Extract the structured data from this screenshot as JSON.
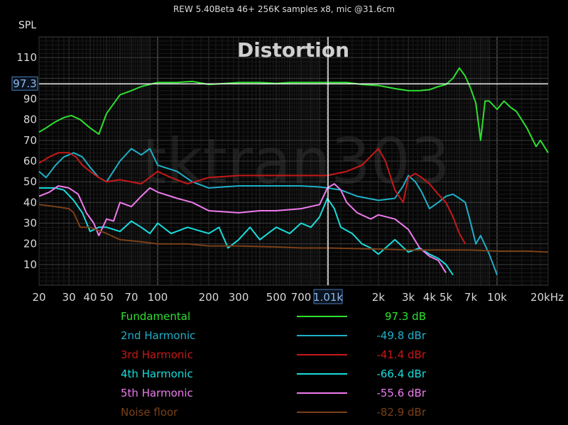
{
  "header": {
    "text": "REW 5.40Beta 46+ 256K samples x8, mic @31.6cm"
  },
  "chart_data": {
    "type": "line",
    "title": "Distortion",
    "ylabel": "SPL",
    "watermark": "tktran303",
    "xscale": "log",
    "xlim": [
      20,
      20000
    ],
    "ylim": [
      0,
      120
    ],
    "grid": true,
    "xticks": [
      {
        "v": 20,
        "t": "20"
      },
      {
        "v": 30,
        "t": "30"
      },
      {
        "v": 40,
        "t": "40"
      },
      {
        "v": 50,
        "t": "50"
      },
      {
        "v": 70,
        "t": "70"
      },
      {
        "v": 100,
        "t": "100"
      },
      {
        "v": 200,
        "t": "200"
      },
      {
        "v": 300,
        "t": "300"
      },
      {
        "v": 500,
        "t": "500"
      },
      {
        "v": 700,
        "t": "700"
      },
      {
        "v": 2000,
        "t": "2k"
      },
      {
        "v": 3000,
        "t": "3k"
      },
      {
        "v": 4000,
        "t": "4k"
      },
      {
        "v": 5000,
        "t": "5k"
      },
      {
        "v": 7000,
        "t": "7k"
      },
      {
        "v": 10000,
        "t": "10k"
      },
      {
        "v": 20000,
        "t": "20kHz"
      }
    ],
    "yticks": [
      10,
      20,
      30,
      40,
      50,
      60,
      70,
      80,
      90,
      110
    ],
    "cursor": {
      "x": 1010,
      "x_label": "1.01k",
      "y": 97.3,
      "y_label": "97.3"
    },
    "legend_position": "bottom",
    "series": [
      {
        "name": "Fundamental",
        "color": "#2ee02e",
        "reading": "97.3 dB",
        "points": [
          [
            20,
            74
          ],
          [
            22,
            76
          ],
          [
            25,
            79
          ],
          [
            28,
            81
          ],
          [
            31,
            82
          ],
          [
            35,
            80
          ],
          [
            40,
            76
          ],
          [
            45,
            73
          ],
          [
            50,
            83
          ],
          [
            60,
            92
          ],
          [
            70,
            94
          ],
          [
            80,
            96
          ],
          [
            100,
            98
          ],
          [
            130,
            98
          ],
          [
            160,
            98.5
          ],
          [
            200,
            97
          ],
          [
            250,
            97.5
          ],
          [
            300,
            98
          ],
          [
            400,
            98
          ],
          [
            500,
            97.5
          ],
          [
            600,
            98
          ],
          [
            700,
            98
          ],
          [
            800,
            98
          ],
          [
            1000,
            98
          ],
          [
            1300,
            98
          ],
          [
            1600,
            97
          ],
          [
            2000,
            96.5
          ],
          [
            2500,
            95
          ],
          [
            3000,
            94
          ],
          [
            3500,
            94
          ],
          [
            4000,
            94.5
          ],
          [
            4500,
            96
          ],
          [
            5000,
            97
          ],
          [
            5500,
            100
          ],
          [
            6000,
            105
          ],
          [
            6500,
            101
          ],
          [
            7000,
            95
          ],
          [
            7500,
            88
          ],
          [
            8000,
            70
          ],
          [
            8500,
            89
          ],
          [
            9000,
            89
          ],
          [
            10000,
            85
          ],
          [
            11000,
            89
          ],
          [
            12000,
            86
          ],
          [
            13000,
            84
          ],
          [
            15000,
            76
          ],
          [
            17000,
            67
          ],
          [
            18000,
            70
          ],
          [
            20000,
            64
          ]
        ]
      },
      {
        "name": "2nd Harmonic",
        "color": "#1fb0c8",
        "reading": "-49.8 dBr",
        "points": [
          [
            20,
            55
          ],
          [
            22,
            52
          ],
          [
            25,
            58
          ],
          [
            28,
            62
          ],
          [
            32,
            64
          ],
          [
            36,
            62
          ],
          [
            40,
            57
          ],
          [
            45,
            52
          ],
          [
            50,
            50
          ],
          [
            60,
            60
          ],
          [
            70,
            66
          ],
          [
            80,
            63
          ],
          [
            90,
            66
          ],
          [
            100,
            58
          ],
          [
            130,
            55
          ],
          [
            160,
            50
          ],
          [
            200,
            47
          ],
          [
            300,
            48
          ],
          [
            500,
            48
          ],
          [
            700,
            48
          ],
          [
            900,
            47.5
          ],
          [
            1000,
            47
          ],
          [
            1200,
            46
          ],
          [
            1500,
            43
          ],
          [
            2000,
            41
          ],
          [
            2500,
            42
          ],
          [
            2800,
            48
          ],
          [
            3000,
            53
          ],
          [
            3300,
            50
          ],
          [
            3600,
            45
          ],
          [
            4000,
            37
          ],
          [
            4500,
            40
          ],
          [
            5000,
            43
          ],
          [
            5500,
            44
          ],
          [
            6000,
            42
          ],
          [
            6500,
            40
          ],
          [
            7000,
            30
          ],
          [
            7500,
            20
          ],
          [
            8000,
            24
          ],
          [
            9000,
            15
          ],
          [
            10000,
            5
          ]
        ]
      },
      {
        "name": "3rd Harmonic",
        "color": "#c81818",
        "reading": "-41.4 dBr",
        "points": [
          [
            20,
            59
          ],
          [
            23,
            62
          ],
          [
            26,
            64
          ],
          [
            30,
            64
          ],
          [
            33,
            62
          ],
          [
            36,
            58
          ],
          [
            40,
            55
          ],
          [
            45,
            52
          ],
          [
            50,
            50
          ],
          [
            60,
            51
          ],
          [
            80,
            49
          ],
          [
            100,
            55
          ],
          [
            120,
            52
          ],
          [
            150,
            49
          ],
          [
            200,
            52
          ],
          [
            300,
            53
          ],
          [
            500,
            53
          ],
          [
            700,
            53
          ],
          [
            1000,
            53
          ],
          [
            1300,
            55
          ],
          [
            1600,
            58
          ],
          [
            2000,
            66
          ],
          [
            2200,
            60
          ],
          [
            2500,
            46
          ],
          [
            2800,
            40
          ],
          [
            3000,
            52
          ],
          [
            3300,
            54
          ],
          [
            3600,
            52
          ],
          [
            4000,
            49
          ],
          [
            4500,
            44
          ],
          [
            5000,
            40
          ],
          [
            5500,
            33
          ],
          [
            6000,
            25
          ],
          [
            6500,
            20
          ]
        ]
      },
      {
        "name": "4th Harmonic",
        "color": "#18dddd",
        "reading": "-66.4 dBr",
        "points": [
          [
            20,
            47
          ],
          [
            22,
            47
          ],
          [
            25,
            47
          ],
          [
            28,
            46
          ],
          [
            32,
            41
          ],
          [
            36,
            35
          ],
          [
            40,
            26
          ],
          [
            45,
            28
          ],
          [
            50,
            28
          ],
          [
            60,
            26
          ],
          [
            70,
            31
          ],
          [
            80,
            28
          ],
          [
            90,
            25
          ],
          [
            100,
            30
          ],
          [
            120,
            25
          ],
          [
            150,
            28
          ],
          [
            200,
            25
          ],
          [
            230,
            28
          ],
          [
            260,
            18
          ],
          [
            300,
            22
          ],
          [
            350,
            28
          ],
          [
            400,
            22
          ],
          [
            500,
            28
          ],
          [
            600,
            25
          ],
          [
            700,
            30
          ],
          [
            800,
            28
          ],
          [
            900,
            33
          ],
          [
            1000,
            42
          ],
          [
            1100,
            37
          ],
          [
            1200,
            28
          ],
          [
            1400,
            25
          ],
          [
            1600,
            20
          ],
          [
            1800,
            18
          ],
          [
            2000,
            15
          ],
          [
            2500,
            22
          ],
          [
            3000,
            16
          ],
          [
            3500,
            18
          ],
          [
            4000,
            15
          ],
          [
            4500,
            13
          ],
          [
            5000,
            10
          ],
          [
            5500,
            5
          ]
        ]
      },
      {
        "name": "5th Harmonic",
        "color": "#ee7aee",
        "reading": "-55.6 dBr",
        "points": [
          [
            20,
            43
          ],
          [
            23,
            45
          ],
          [
            26,
            48
          ],
          [
            30,
            47
          ],
          [
            34,
            44
          ],
          [
            38,
            35
          ],
          [
            42,
            30
          ],
          [
            45,
            24
          ],
          [
            50,
            32
          ],
          [
            55,
            31
          ],
          [
            60,
            40
          ],
          [
            70,
            38
          ],
          [
            80,
            43
          ],
          [
            90,
            47
          ],
          [
            100,
            45
          ],
          [
            130,
            42
          ],
          [
            160,
            40
          ],
          [
            200,
            36
          ],
          [
            300,
            35
          ],
          [
            400,
            36
          ],
          [
            500,
            36
          ],
          [
            700,
            37
          ],
          [
            900,
            39
          ],
          [
            1000,
            47
          ],
          [
            1100,
            49
          ],
          [
            1200,
            46
          ],
          [
            1300,
            40
          ],
          [
            1500,
            35
          ],
          [
            1800,
            32
          ],
          [
            2000,
            34
          ],
          [
            2500,
            32
          ],
          [
            3000,
            27
          ],
          [
            3500,
            18
          ],
          [
            4000,
            14
          ],
          [
            4500,
            12
          ],
          [
            5000,
            6
          ]
        ]
      },
      {
        "name": "Noise floor",
        "color": "#7a4018",
        "reading": "-82.9 dBr",
        "points": [
          [
            20,
            39
          ],
          [
            25,
            38
          ],
          [
            30,
            37
          ],
          [
            32,
            35
          ],
          [
            35,
            28
          ],
          [
            40,
            28
          ],
          [
            50,
            25
          ],
          [
            60,
            22
          ],
          [
            80,
            21
          ],
          [
            100,
            20
          ],
          [
            150,
            20
          ],
          [
            200,
            19
          ],
          [
            300,
            19
          ],
          [
            500,
            18.5
          ],
          [
            700,
            18
          ],
          [
            1000,
            18
          ],
          [
            2000,
            17.5
          ],
          [
            3000,
            17
          ],
          [
            5000,
            17
          ],
          [
            7000,
            17
          ],
          [
            10000,
            16.5
          ],
          [
            15000,
            16.5
          ],
          [
            20000,
            16
          ]
        ]
      }
    ]
  }
}
